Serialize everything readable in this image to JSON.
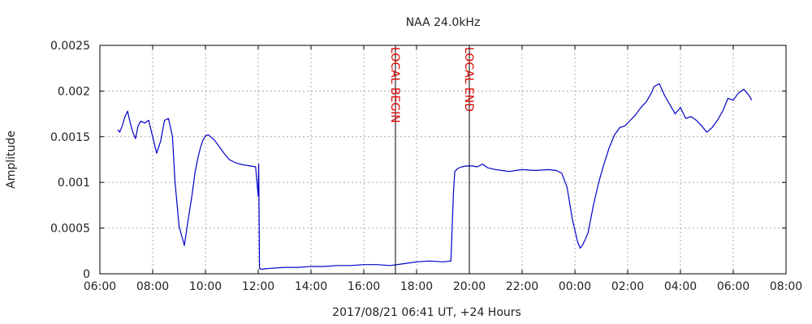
{
  "chart_data": {
    "type": "line",
    "title": "NAA 24.0kHz",
    "xlabel": "2017/08/21 06:41 UT, +24 Hours",
    "ylabel": "Amplitude",
    "x_unit": "hours since 06:00",
    "xlim": [
      0,
      26
    ],
    "ylim": [
      0,
      0.0025
    ],
    "x_tick_values": [
      0,
      2,
      4,
      6,
      8,
      10,
      12,
      14,
      16,
      18,
      20,
      22,
      24,
      26
    ],
    "x_tick_labels": [
      "06:00",
      "08:00",
      "10:00",
      "12:00",
      "14:00",
      "16:00",
      "18:00",
      "20:00",
      "22:00",
      "00:00",
      "02:00",
      "04:00",
      "06:00",
      "08:00"
    ],
    "y_tick_values": [
      0,
      0.0005,
      0.001,
      0.0015,
      0.002,
      0.0025
    ],
    "y_tick_labels": [
      "0",
      "0.0005",
      "0.001",
      "0.0015",
      "0.002",
      "0.0025"
    ],
    "grid": true,
    "colors": {
      "series": "#0000c8",
      "marker_line": "#000000",
      "marker_text": "#e00000",
      "grid": "#a8a8a8",
      "frame": "#000000"
    },
    "markers": [
      {
        "x": 11.2,
        "label": "LOCAL BEGIN"
      },
      {
        "x": 14.0,
        "label": "LOCAL END"
      }
    ],
    "series": [
      {
        "x": [
          0.68,
          0.75,
          0.85,
          0.95,
          1.05,
          1.15,
          1.25,
          1.35,
          1.45,
          1.55,
          1.7,
          1.85,
          2.0,
          2.15,
          2.3,
          2.45,
          2.6,
          2.75,
          2.85,
          3.0,
          3.2,
          3.35,
          3.5,
          3.6,
          3.7,
          3.8,
          3.9,
          4.0,
          4.1,
          4.2,
          4.35,
          4.5,
          4.7,
          4.9,
          5.1,
          5.3,
          5.5,
          5.7,
          5.9,
          6.0,
          6.02,
          6.05,
          6.1,
          6.5,
          7.0,
          7.5,
          8.0,
          8.5,
          9.0,
          9.5,
          10.0,
          10.5,
          11.0,
          11.5,
          12.0,
          12.5,
          13.0,
          13.3,
          13.4,
          13.45,
          13.55,
          13.7,
          13.9,
          14.1,
          14.3,
          14.5,
          14.7,
          15.0,
          15.5,
          16.0,
          16.5,
          17.0,
          17.3,
          17.5,
          17.7,
          17.9,
          18.1,
          18.2,
          18.3,
          18.4,
          18.5,
          18.7,
          18.9,
          19.1,
          19.3,
          19.5,
          19.7,
          19.9,
          20.0,
          20.1,
          20.3,
          20.5,
          20.7,
          20.9,
          21.0,
          21.2,
          21.4,
          21.6,
          21.8,
          22.0,
          22.2,
          22.4,
          22.6,
          22.8,
          23.0,
          23.2,
          23.4,
          23.6,
          23.8,
          24.0,
          24.2,
          24.4,
          24.6,
          24.7
        ],
        "y": [
          0.00158,
          0.00155,
          0.00162,
          0.00172,
          0.00178,
          0.00165,
          0.00155,
          0.00148,
          0.00162,
          0.00167,
          0.00165,
          0.00168,
          0.0015,
          0.00132,
          0.00145,
          0.00168,
          0.0017,
          0.0015,
          0.001,
          0.00052,
          0.00031,
          0.0006,
          0.00088,
          0.0011,
          0.00125,
          0.00137,
          0.00146,
          0.00151,
          0.00152,
          0.0015,
          0.00146,
          0.0014,
          0.00132,
          0.00125,
          0.00122,
          0.0012,
          0.00119,
          0.00118,
          0.00117,
          0.00085,
          0.0012,
          6e-05,
          5e-05,
          6e-05,
          7e-05,
          7e-05,
          8e-05,
          8e-05,
          9e-05,
          9e-05,
          0.0001,
          0.0001,
          9e-05,
          0.00011,
          0.00013,
          0.00014,
          0.00013,
          0.00014,
          0.0009,
          0.00112,
          0.00115,
          0.00117,
          0.00118,
          0.00118,
          0.00117,
          0.0012,
          0.00116,
          0.00114,
          0.00112,
          0.00114,
          0.00113,
          0.00114,
          0.00113,
          0.0011,
          0.00095,
          0.0006,
          0.00035,
          0.00028,
          0.00032,
          0.00038,
          0.00045,
          0.00075,
          0.001,
          0.0012,
          0.00138,
          0.00152,
          0.0016,
          0.00162,
          0.00165,
          0.00168,
          0.00174,
          0.00182,
          0.00188,
          0.00198,
          0.00205,
          0.00208,
          0.00195,
          0.00185,
          0.00175,
          0.00182,
          0.0017,
          0.00172,
          0.00168,
          0.00162,
          0.00155,
          0.0016,
          0.00168,
          0.00178,
          0.00192,
          0.0019,
          0.00198,
          0.00202,
          0.00195,
          0.0019
        ]
      }
    ]
  }
}
